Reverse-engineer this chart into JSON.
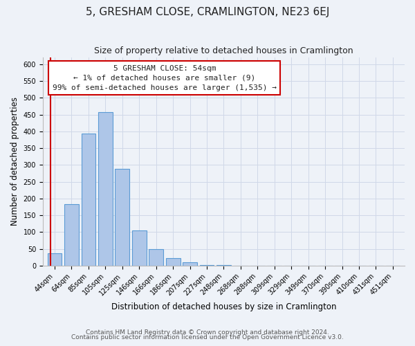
{
  "title": "5, GRESHAM CLOSE, CRAMLINGTON, NE23 6EJ",
  "subtitle": "Size of property relative to detached houses in Cramlington",
  "xlabel": "Distribution of detached houses by size in Cramlington",
  "ylabel": "Number of detached properties",
  "footnote1": "Contains HM Land Registry data © Crown copyright and database right 2024.",
  "footnote2": "Contains public sector information licensed under the Open Government Licence v3.0.",
  "bar_labels": [
    "44sqm",
    "64sqm",
    "85sqm",
    "105sqm",
    "125sqm",
    "146sqm",
    "166sqm",
    "186sqm",
    "207sqm",
    "227sqm",
    "248sqm",
    "268sqm",
    "288sqm",
    "309sqm",
    "329sqm",
    "349sqm",
    "370sqm",
    "390sqm",
    "410sqm",
    "431sqm",
    "451sqm"
  ],
  "bar_values": [
    37,
    183,
    393,
    457,
    288,
    105,
    50,
    22,
    10,
    2,
    1,
    0,
    0,
    0,
    0,
    0,
    0,
    0,
    0,
    0,
    0
  ],
  "bar_color": "#aec6e8",
  "bar_edge_color": "#5b9bd5",
  "highlight_color": "#cc0000",
  "annotation_text": "5 GRESHAM CLOSE: 54sqm\n← 1% of detached houses are smaller (9)\n99% of semi-detached houses are larger (1,535) →",
  "annotation_box_color": "#ffffff",
  "annotation_box_edge_color": "#cc0000",
  "ylim": [
    0,
    620
  ],
  "yticks": [
    0,
    50,
    100,
    150,
    200,
    250,
    300,
    350,
    400,
    450,
    500,
    550,
    600
  ],
  "grid_color": "#d0d8e8",
  "background_color": "#eef2f8",
  "title_fontsize": 11,
  "subtitle_fontsize": 9,
  "axis_label_fontsize": 8.5,
  "tick_fontsize": 7,
  "annotation_fontsize": 8,
  "footnote_fontsize": 6.5
}
